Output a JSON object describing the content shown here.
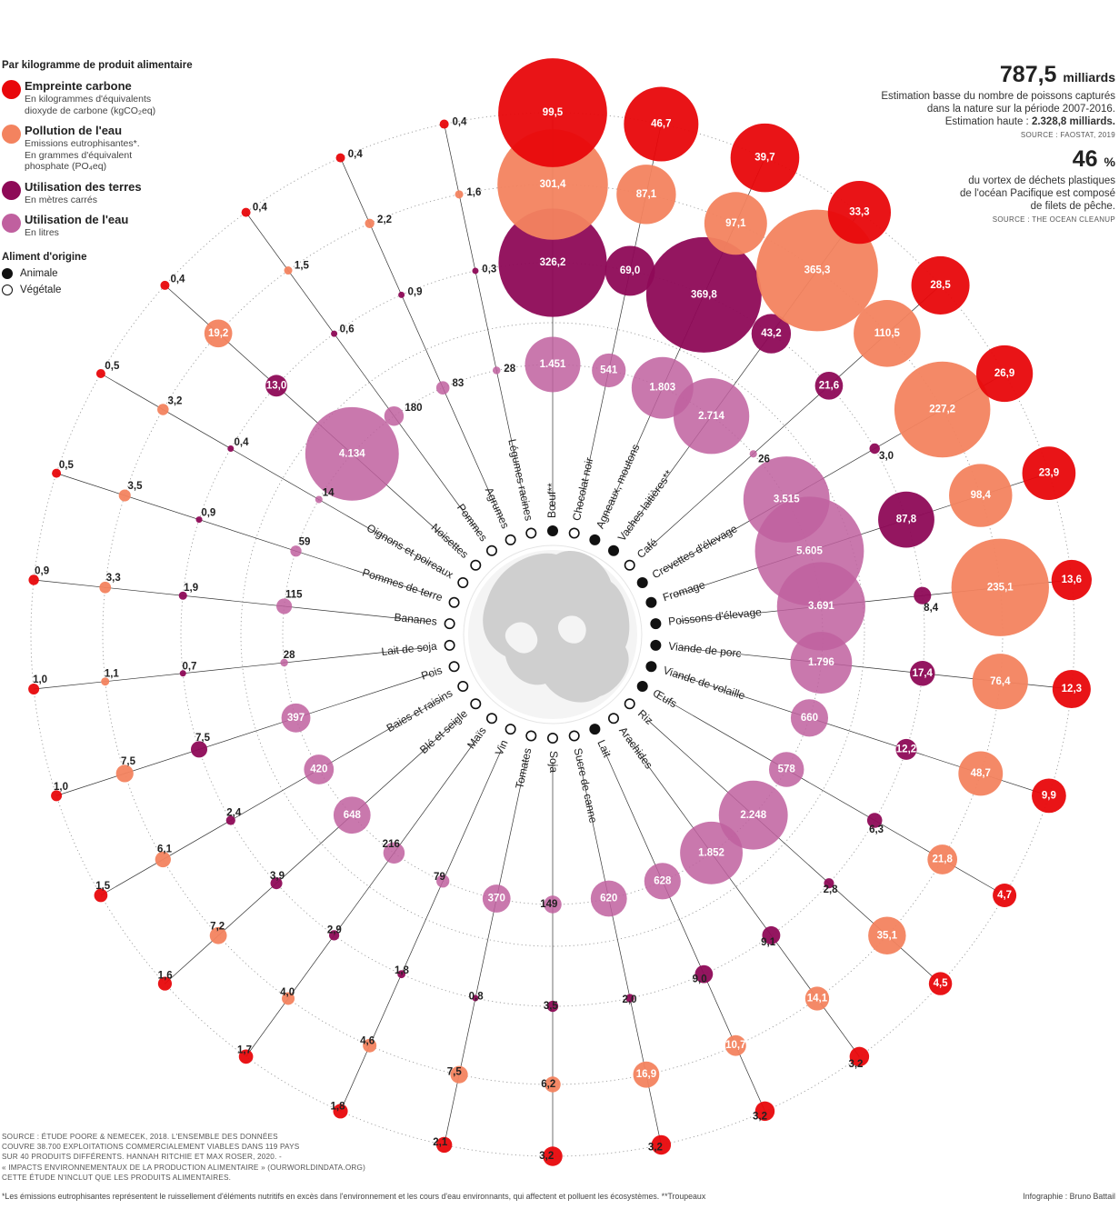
{
  "legend": {
    "heading": "Par kilogramme de produit alimentaire",
    "items": [
      {
        "title": "Empreinte carbone",
        "sub1": "En kilogrammes d'équivalents",
        "sub2": "dioxyde de carbone (kgCO₂eq)",
        "sub3": "",
        "color": "#e8070b"
      },
      {
        "title": "Pollution de l'eau",
        "sub1": "Emissions eutrophisantes*.",
        "sub2": "En grammes d'équivalent",
        "sub3": "phosphate (PO₄eq)",
        "color": "#f3835f"
      },
      {
        "title": "Utilisation des terres",
        "sub1": "En mètres carrés",
        "sub2": "",
        "sub3": "",
        "color": "#8e0a57"
      },
      {
        "title": "Utilisation de l'eau",
        "sub1": "En litres",
        "sub2": "",
        "sub3": "",
        "color": "#c0609f"
      }
    ],
    "origin_heading": "Aliment d'origine",
    "animal_label": "Animale",
    "vegetal_label": "Végétale"
  },
  "facts": {
    "fact1_value": "787,5",
    "fact1_unit": "milliards",
    "fact1_line1": "Estimation basse du nombre de poissons capturés",
    "fact1_line2": "dans la nature sur la période 2007-2016.",
    "fact1_line3_prefix": "Estimation haute : ",
    "fact1_line3_bold": "2.328,8 milliards.",
    "fact1_source": "SOURCE : FAOSTAT, 2019",
    "fact2_value": "46",
    "fact2_unit": "%",
    "fact2_line1": "du vortex de déchets plastiques",
    "fact2_line2": "de l'océan Pacifique est composé",
    "fact2_line3": "de filets de pêche.",
    "fact2_source": "SOURCE : THE OCEAN CLEANUP"
  },
  "footer": {
    "line1": "SOURCE : ÉTUDE POORE & NEMECEK, 2018. L'ENSEMBLE DES DONNÉES",
    "line2": "COUVRE 38.700 EXPLOITATIONS COMMERCIALEMENT VIABLES DANS 119 PAYS",
    "line3": "SUR 40 PRODUITS DIFFÉRENTS. HANNAH RITCHIE ET MAX ROSER, 2020. -",
    "line4": "« IMPACTS ENVIRONNEMENTAUX DE LA PRODUCTION ALIMENTAIRE » (OURWORLDINDATA.ORG)",
    "line5": "CETTE ÉTUDE N'INCLUT QUE LES PRODUITS ALIMENTAIRES.",
    "notes": "*Les émissions eutrophisantes représentent le ruissellement d'éléments nutritifs en excès dans l'environnement et les cours d'eau environnants, qui affectent et polluent les écosystèmes. **Troupeaux",
    "credit": "Infographie : Bruno Battail"
  },
  "chart_data": {
    "type": "radial-bubble",
    "metrics": [
      "Empreinte carbone (kgCO2eq)",
      "Pollution de l'eau (gPO4eq)",
      "Utilisation des terres (m²)",
      "Utilisation de l'eau (L)"
    ],
    "series_colors": {
      "carbon": "#e8070b",
      "water_pollution": "#f3835f",
      "land": "#8e0a57",
      "water_use": "#c0609f"
    },
    "products": [
      {
        "name": "Bœuf**",
        "origin": "animal",
        "carbon": "99,5",
        "water_pollution": "301,4",
        "land": "326,2",
        "water_use": "1.451"
      },
      {
        "name": "Chocolat noir",
        "origin": "vegetal",
        "carbon": "46,7",
        "water_pollution": "87,1",
        "land": "69,0",
        "water_use": "541"
      },
      {
        "name": "Agneaux, moutons",
        "origin": "animal",
        "carbon": "39,7",
        "water_pollution": "97,1",
        "land": "369,8",
        "water_use": "1.803"
      },
      {
        "name": "Vaches laitières**",
        "origin": "animal",
        "carbon": "33,3",
        "water_pollution": "365,3",
        "land": "43,2",
        "water_use": "2.714"
      },
      {
        "name": "Café",
        "origin": "vegetal",
        "carbon": "28,5",
        "water_pollution": "110,5",
        "land": "21,6",
        "water_use": "26"
      },
      {
        "name": "Crevettes d'élevage",
        "origin": "animal",
        "carbon": "26,9",
        "water_pollution": "227,2",
        "land": "3,0",
        "water_use": "3.515"
      },
      {
        "name": "Fromage",
        "origin": "animal",
        "carbon": "23,9",
        "water_pollution": "98,4",
        "land": "87,8",
        "water_use": "5.605"
      },
      {
        "name": "Poissons d'élevage",
        "origin": "animal",
        "carbon": "13,6",
        "water_pollution": "235,1",
        "land": "8,4",
        "water_use": "3.691"
      },
      {
        "name": "Viande de porc",
        "origin": "animal",
        "carbon": "12,3",
        "water_pollution": "76,4",
        "land": "17,4",
        "water_use": "1.796"
      },
      {
        "name": "Viande de volaille",
        "origin": "animal",
        "carbon": "9,9",
        "water_pollution": "48,7",
        "land": "12,2",
        "water_use": "660"
      },
      {
        "name": "Œufs",
        "origin": "animal",
        "carbon": "4,7",
        "water_pollution": "21,8",
        "land": "6,3",
        "water_use": "578"
      },
      {
        "name": "Riz",
        "origin": "vegetal",
        "carbon": "4,5",
        "water_pollution": "35,1",
        "land": "2,8",
        "water_use": "2.248"
      },
      {
        "name": "Arachides",
        "origin": "vegetal",
        "carbon": "3,2",
        "water_pollution": "14,1",
        "land": "9,1",
        "water_use": "1.852"
      },
      {
        "name": "Lait",
        "origin": "animal",
        "carbon": "3,2",
        "water_pollution": "10,7",
        "land": "9,0",
        "water_use": "628"
      },
      {
        "name": "Sucre de canne",
        "origin": "vegetal",
        "carbon": "3,2",
        "water_pollution": "16,9",
        "land": "2,0",
        "water_use": "620"
      },
      {
        "name": "Soja",
        "origin": "vegetal",
        "carbon": "3,2",
        "water_pollution": "6,2",
        "land": "3,5",
        "water_use": "149"
      },
      {
        "name": "Tomates",
        "origin": "vegetal",
        "carbon": "2,1",
        "water_pollution": "7,5",
        "land": "0,8",
        "water_use": "370"
      },
      {
        "name": "Vin",
        "origin": "vegetal",
        "carbon": "1,8",
        "water_pollution": "4,6",
        "land": "1,8",
        "water_use": "79"
      },
      {
        "name": "Maïs",
        "origin": "vegetal",
        "carbon": "1,7",
        "water_pollution": "4,0",
        "land": "2,9",
        "water_use": "216"
      },
      {
        "name": "Blé et seigle",
        "origin": "vegetal",
        "carbon": "1,6",
        "water_pollution": "7,2",
        "land": "3,9",
        "water_use": "648"
      },
      {
        "name": "Baies et raisins",
        "origin": "vegetal",
        "carbon": "1,5",
        "water_pollution": "6,1",
        "land": "2,4",
        "water_use": "420"
      },
      {
        "name": "Pois",
        "origin": "vegetal",
        "carbon": "1,0",
        "water_pollution": "7,5",
        "land": "7,5",
        "water_use": "397"
      },
      {
        "name": "Lait de soja",
        "origin": "vegetal",
        "carbon": "1,0",
        "water_pollution": "1,1",
        "land": "0,7",
        "water_use": "28"
      },
      {
        "name": "Bananes",
        "origin": "vegetal",
        "carbon": "0,9",
        "water_pollution": "3,3",
        "land": "1,9",
        "water_use": "115"
      },
      {
        "name": "Pommes de terre",
        "origin": "vegetal",
        "carbon": "0,5",
        "water_pollution": "3,5",
        "land": "0,9",
        "water_use": "59"
      },
      {
        "name": "Oignons et poireaux",
        "origin": "vegetal",
        "carbon": "0,5",
        "water_pollution": "3,2",
        "land": "0,4",
        "water_use": "14"
      },
      {
        "name": "Noisettes",
        "origin": "vegetal",
        "carbon": "0,4",
        "water_pollution": "19,2",
        "land": "13,0",
        "water_use": "4.134"
      },
      {
        "name": "Pommes",
        "origin": "vegetal",
        "carbon": "0,4",
        "water_pollution": "1,5",
        "land": "0,6",
        "water_use": "180"
      },
      {
        "name": "Agrumes",
        "origin": "vegetal",
        "carbon": "0,4",
        "water_pollution": "2,2",
        "land": "0,9",
        "water_use": "83"
      },
      {
        "name": "Légumes racines",
        "origin": "vegetal",
        "carbon": "0,4",
        "water_pollution": "1,6",
        "land": "0,3",
        "water_use": "28"
      }
    ]
  }
}
